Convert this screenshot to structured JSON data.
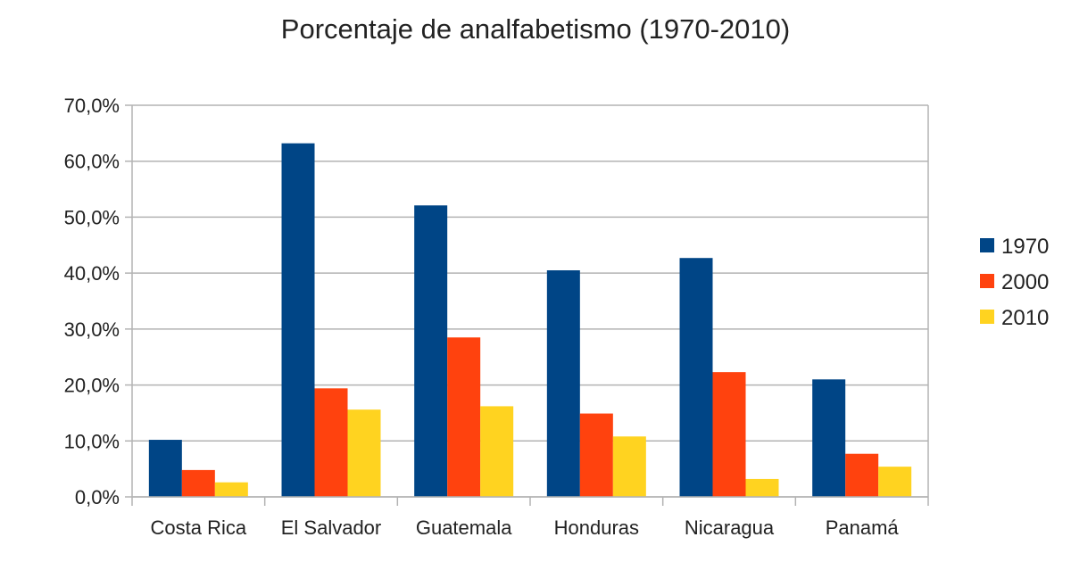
{
  "chart_data": {
    "type": "bar",
    "title": "Porcentaje de analfabetismo (1970-2010)",
    "xlabel": "",
    "ylabel": "",
    "categories": [
      "Costa Rica",
      "El Salvador",
      "Guatemala",
      "Honduras",
      "Nicaragua",
      "Panamá"
    ],
    "series": [
      {
        "name": "1970",
        "color": "#004586",
        "values": [
          10.2,
          63.2,
          52.1,
          40.5,
          42.7,
          21.0
        ]
      },
      {
        "name": "2000",
        "color": "#ff420e",
        "values": [
          4.8,
          19.4,
          28.5,
          14.9,
          22.3,
          7.7
        ]
      },
      {
        "name": "2010",
        "color": "#ffd320",
        "values": [
          2.6,
          15.6,
          16.2,
          10.8,
          3.2,
          5.4
        ]
      }
    ],
    "ylim": [
      0,
      70
    ],
    "yticks": [
      "0,0%",
      "10,0%",
      "20,0%",
      "30,0%",
      "40,0%",
      "50,0%",
      "60,0%",
      "70,0%"
    ],
    "grid": true,
    "legend_position": "right"
  }
}
